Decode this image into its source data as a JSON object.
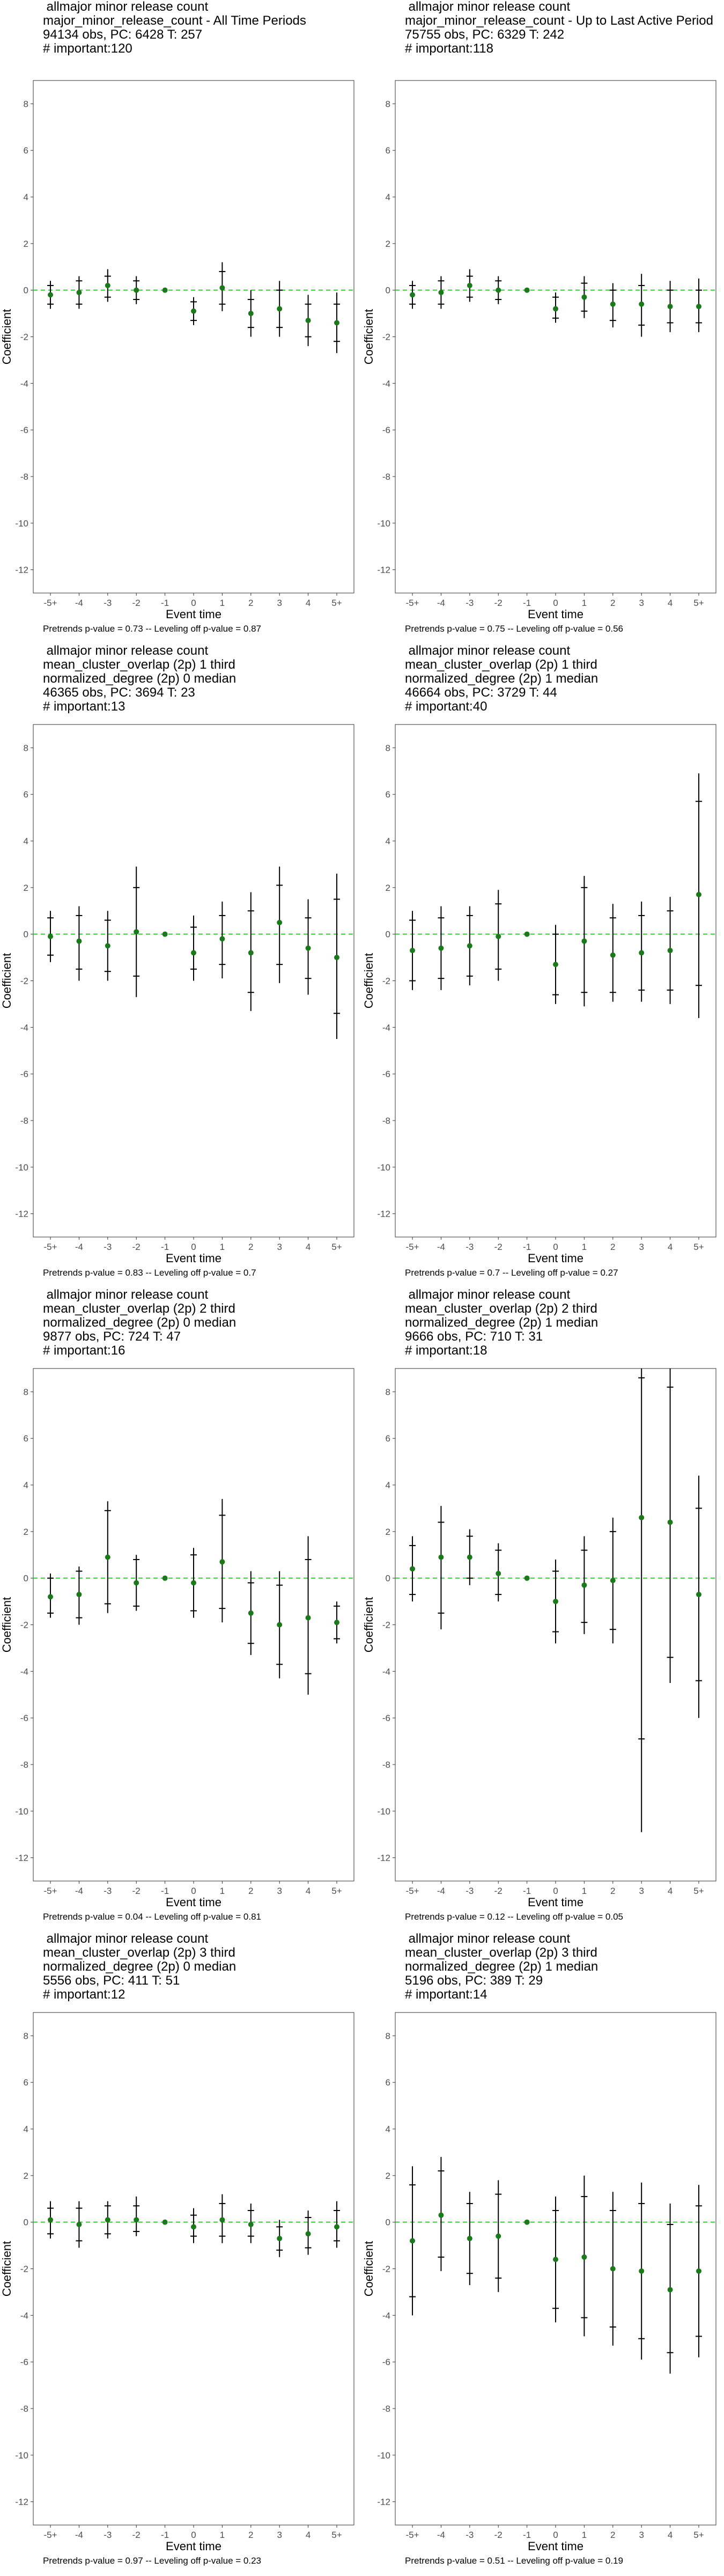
{
  "chart_data": [
    {
      "type": "scatter",
      "title_lines": [
        "allmajor minor release count",
        "major_minor_release_count - All Time Periods",
        "94134 obs, PC: 6428 T: 257",
        "# important:120"
      ],
      "xlabel": "Event time",
      "ylabel": "Coefficient",
      "categories": [
        "-5+",
        "-4",
        "-3",
        "-2",
        "-1",
        "0",
        "1",
        "2",
        "3",
        "4",
        "5+"
      ],
      "ylim": [
        -13,
        9
      ],
      "yticks": [
        8,
        6,
        4,
        2,
        0,
        -2,
        -4,
        -6,
        -8,
        -10,
        -12
      ],
      "y": [
        -0.2,
        -0.1,
        0.2,
        0.0,
        0.0,
        -0.9,
        0.1,
        -1.0,
        -0.8,
        -1.3,
        -1.4
      ],
      "ci95": [
        [
          -0.8,
          0.4
        ],
        [
          -0.8,
          0.6
        ],
        [
          -0.5,
          0.9
        ],
        [
          -0.6,
          0.6
        ],
        [
          0.0,
          0.0
        ],
        [
          -1.5,
          -0.3
        ],
        [
          -0.9,
          1.2
        ],
        [
          -2.0,
          0.0
        ],
        [
          -2.0,
          0.4
        ],
        [
          -2.4,
          -0.2
        ],
        [
          -2.7,
          -0.1
        ]
      ],
      "ci90": [
        [
          -0.6,
          0.2
        ],
        [
          -0.6,
          0.4
        ],
        [
          -0.3,
          0.6
        ],
        [
          -0.4,
          0.4
        ],
        [
          0.0,
          0.0
        ],
        [
          -1.3,
          -0.5
        ],
        [
          -0.6,
          0.8
        ],
        [
          -1.6,
          -0.4
        ],
        [
          -1.6,
          0.0
        ],
        [
          -2.0,
          -0.6
        ],
        [
          -2.2,
          -0.6
        ]
      ],
      "footnote": "Pretrends p-value = 0.73 -- Leveling off p-value = 0.87"
    },
    {
      "type": "scatter",
      "title_lines": [
        "allmajor minor release count",
        "major_minor_release_count - Up to Last Active Period",
        "75755 obs, PC: 6329 T: 242",
        "# important:118"
      ],
      "xlabel": "Event time",
      "ylabel": "Coefficient",
      "categories": [
        "-5+",
        "-4",
        "-3",
        "-2",
        "-1",
        "0",
        "1",
        "2",
        "3",
        "4",
        "5+"
      ],
      "ylim": [
        -13,
        9
      ],
      "yticks": [
        8,
        6,
        4,
        2,
        0,
        -2,
        -4,
        -6,
        -8,
        -10,
        -12
      ],
      "y": [
        -0.2,
        -0.1,
        0.2,
        0.0,
        0.0,
        -0.8,
        -0.3,
        -0.6,
        -0.6,
        -0.7,
        -0.7
      ],
      "ci95": [
        [
          -0.8,
          0.4
        ],
        [
          -0.8,
          0.6
        ],
        [
          -0.5,
          0.9
        ],
        [
          -0.6,
          0.6
        ],
        [
          0.0,
          0.0
        ],
        [
          -1.4,
          -0.1
        ],
        [
          -1.2,
          0.6
        ],
        [
          -1.6,
          0.3
        ],
        [
          -2.0,
          0.7
        ],
        [
          -1.8,
          0.4
        ],
        [
          -1.8,
          0.5
        ]
      ],
      "ci90": [
        [
          -0.6,
          0.2
        ],
        [
          -0.6,
          0.4
        ],
        [
          -0.3,
          0.6
        ],
        [
          -0.4,
          0.4
        ],
        [
          0.0,
          0.0
        ],
        [
          -1.2,
          -0.3
        ],
        [
          -0.9,
          0.3
        ],
        [
          -1.3,
          0.0
        ],
        [
          -1.5,
          0.2
        ],
        [
          -1.4,
          0.0
        ],
        [
          -1.4,
          0.0
        ]
      ],
      "footnote": "Pretrends p-value = 0.75 -- Leveling off p-value = 0.56"
    },
    {
      "type": "scatter",
      "title_lines": [
        "allmajor minor release count",
        "mean_cluster_overlap (2p) 1 third",
        "normalized_degree (2p) 0 median",
        "46365 obs, PC: 3694 T: 23",
        "# important:13"
      ],
      "xlabel": "Event time",
      "ylabel": "Coefficient",
      "categories": [
        "-5+",
        "-4",
        "-3",
        "-2",
        "-1",
        "0",
        "1",
        "2",
        "3",
        "4",
        "5+"
      ],
      "ylim": [
        -13,
        9
      ],
      "yticks": [
        8,
        6,
        4,
        2,
        0,
        -2,
        -4,
        -6,
        -8,
        -10,
        -12
      ],
      "y": [
        -0.1,
        -0.3,
        -0.5,
        0.1,
        0.0,
        -0.8,
        -0.2,
        -0.8,
        0.5,
        -0.6,
        -1.0
      ],
      "ci95": [
        [
          -1.2,
          1.0
        ],
        [
          -2.0,
          1.2
        ],
        [
          -2.0,
          1.0
        ],
        [
          -2.7,
          2.9
        ],
        [
          0.0,
          0.0
        ],
        [
          -2.0,
          0.8
        ],
        [
          -1.9,
          1.4
        ],
        [
          -3.3,
          1.8
        ],
        [
          -2.1,
          2.9
        ],
        [
          -2.6,
          1.5
        ],
        [
          -4.5,
          2.6
        ]
      ],
      "ci90": [
        [
          -0.9,
          0.7
        ],
        [
          -1.5,
          0.8
        ],
        [
          -1.6,
          0.6
        ],
        [
          -1.8,
          2.0
        ],
        [
          0.0,
          0.0
        ],
        [
          -1.5,
          0.3
        ],
        [
          -1.3,
          0.8
        ],
        [
          -2.5,
          1.0
        ],
        [
          -1.3,
          2.1
        ],
        [
          -1.9,
          0.7
        ],
        [
          -3.4,
          1.5
        ]
      ],
      "footnote": "Pretrends p-value = 0.83 -- Leveling off p-value = 0.7"
    },
    {
      "type": "scatter",
      "title_lines": [
        "allmajor minor release count",
        "mean_cluster_overlap (2p) 1 third",
        "normalized_degree (2p) 1 median",
        "46664 obs, PC: 3729 T: 44",
        "# important:40"
      ],
      "xlabel": "Event time",
      "ylabel": "Coefficient",
      "categories": [
        "-5+",
        "-4",
        "-3",
        "-2",
        "-1",
        "0",
        "1",
        "2",
        "3",
        "4",
        "5+"
      ],
      "ylim": [
        -13,
        9
      ],
      "yticks": [
        8,
        6,
        4,
        2,
        0,
        -2,
        -4,
        -6,
        -8,
        -10,
        -12
      ],
      "y": [
        -0.7,
        -0.6,
        -0.5,
        -0.1,
        0.0,
        -1.3,
        -0.3,
        -0.9,
        -0.8,
        -0.7,
        1.7
      ],
      "ci95": [
        [
          -2.4,
          1.0
        ],
        [
          -2.4,
          1.2
        ],
        [
          -2.2,
          1.2
        ],
        [
          -2.0,
          1.9
        ],
        [
          0.0,
          0.0
        ],
        [
          -3.0,
          0.4
        ],
        [
          -3.1,
          2.5
        ],
        [
          -2.9,
          1.3
        ],
        [
          -2.9,
          1.4
        ],
        [
          -3.0,
          1.6
        ],
        [
          -3.6,
          6.9
        ]
      ],
      "ci90": [
        [
          -2.0,
          0.6
        ],
        [
          -1.9,
          0.7
        ],
        [
          -1.8,
          0.8
        ],
        [
          -1.5,
          1.3
        ],
        [
          0.0,
          0.0
        ],
        [
          -2.6,
          0.0
        ],
        [
          -2.5,
          2.0
        ],
        [
          -2.5,
          0.7
        ],
        [
          -2.4,
          0.8
        ],
        [
          -2.4,
          1.0
        ],
        [
          -2.2,
          5.7
        ]
      ],
      "footnote": "Pretrends p-value = 0.7 -- Leveling off p-value = 0.27"
    },
    {
      "type": "scatter",
      "title_lines": [
        "allmajor minor release count",
        "mean_cluster_overlap (2p) 2 third",
        "normalized_degree (2p) 0 median",
        "9877 obs, PC: 724 T: 47",
        "# important:16"
      ],
      "xlabel": "Event time",
      "ylabel": "Coefficient",
      "categories": [
        "-5+",
        "-4",
        "-3",
        "-2",
        "-1",
        "0",
        "1",
        "2",
        "3",
        "4",
        "5+"
      ],
      "ylim": [
        -13,
        9
      ],
      "yticks": [
        8,
        6,
        4,
        2,
        0,
        -2,
        -4,
        -6,
        -8,
        -10,
        -12
      ],
      "y": [
        -0.8,
        -0.7,
        0.9,
        -0.2,
        0.0,
        -0.2,
        0.7,
        -1.5,
        -2.0,
        -1.7,
        -1.9
      ],
      "ci95": [
        [
          -1.7,
          0.2
        ],
        [
          -2.0,
          0.5
        ],
        [
          -1.5,
          3.3
        ],
        [
          -1.4,
          1.0
        ],
        [
          0.0,
          0.0
        ],
        [
          -1.7,
          1.3
        ],
        [
          -1.9,
          3.4
        ],
        [
          -3.3,
          0.3
        ],
        [
          -4.3,
          0.3
        ],
        [
          -5.0,
          1.8
        ],
        [
          -2.8,
          -1.0
        ]
      ],
      "ci90": [
        [
          -1.5,
          0.0
        ],
        [
          -1.7,
          0.3
        ],
        [
          -1.1,
          2.9
        ],
        [
          -1.2,
          0.8
        ],
        [
          0.0,
          0.0
        ],
        [
          -1.4,
          1.0
        ],
        [
          -1.3,
          2.7
        ],
        [
          -2.8,
          -0.2
        ],
        [
          -3.7,
          -0.3
        ],
        [
          -4.1,
          0.8
        ],
        [
          -2.6,
          -1.2
        ]
      ],
      "footnote": "Pretrends p-value = 0.04 -- Leveling off p-value = 0.81"
    },
    {
      "type": "scatter",
      "title_lines": [
        "allmajor minor release count",
        "mean_cluster_overlap (2p) 2 third",
        "normalized_degree (2p) 1 median",
        "9666 obs, PC: 710 T: 31",
        "# important:18"
      ],
      "xlabel": "Event time",
      "ylabel": "Coefficient",
      "categories": [
        "-5+",
        "-4",
        "-3",
        "-2",
        "-1",
        "0",
        "1",
        "2",
        "3",
        "4",
        "5+"
      ],
      "ylim": [
        -13,
        9
      ],
      "yticks": [
        8,
        6,
        4,
        2,
        0,
        -2,
        -4,
        -6,
        -8,
        -10,
        -12
      ],
      "y": [
        0.4,
        0.9,
        0.9,
        0.2,
        0.0,
        -1.0,
        -0.3,
        -0.1,
        2.6,
        2.4,
        -0.7
      ],
      "ci95": [
        [
          -1.0,
          1.8
        ],
        [
          -2.2,
          3.1
        ],
        [
          -0.3,
          2.1
        ],
        [
          -1.0,
          1.5
        ],
        [
          0.0,
          0.0
        ],
        [
          -2.8,
          0.8
        ],
        [
          -2.4,
          1.8
        ],
        [
          -2.8,
          2.6
        ],
        [
          -10.9,
          9.0
        ],
        [
          -4.5,
          9.0
        ],
        [
          -6.0,
          4.4
        ]
      ],
      "ci90": [
        [
          -0.7,
          1.4
        ],
        [
          -1.5,
          2.4
        ],
        [
          0.0,
          1.8
        ],
        [
          -0.7,
          1.2
        ],
        [
          0.0,
          0.0
        ],
        [
          -2.3,
          0.3
        ],
        [
          -1.9,
          1.2
        ],
        [
          -2.2,
          2.0
        ],
        [
          -6.9,
          8.6
        ],
        [
          -3.4,
          8.2
        ],
        [
          -4.4,
          3.0
        ]
      ],
      "footnote": "Pretrends p-value = 0.12 -- Leveling off p-value = 0.05"
    },
    {
      "type": "scatter",
      "title_lines": [
        "allmajor minor release count",
        "mean_cluster_overlap (2p) 3 third",
        "normalized_degree (2p) 0 median",
        "5556 obs, PC: 411 T: 51",
        "# important:12"
      ],
      "xlabel": "Event time",
      "ylabel": "Coefficient",
      "categories": [
        "-5+",
        "-4",
        "-3",
        "-2",
        "-1",
        "0",
        "1",
        "2",
        "3",
        "4",
        "5+"
      ],
      "ylim": [
        -13,
        9
      ],
      "yticks": [
        8,
        6,
        4,
        2,
        0,
        -2,
        -4,
        -6,
        -8,
        -10,
        -12
      ],
      "y": [
        0.1,
        -0.1,
        0.1,
        0.1,
        0.0,
        -0.2,
        0.1,
        -0.1,
        -0.7,
        -0.5,
        -0.2
      ],
      "ci95": [
        [
          -0.7,
          0.9
        ],
        [
          -1.1,
          0.9
        ],
        [
          -0.7,
          0.9
        ],
        [
          -0.6,
          1.1
        ],
        [
          0.0,
          0.0
        ],
        [
          -0.9,
          0.6
        ],
        [
          -0.9,
          1.2
        ],
        [
          -0.9,
          0.8
        ],
        [
          -1.5,
          0.1
        ],
        [
          -1.4,
          0.5
        ],
        [
          -1.1,
          0.9
        ]
      ],
      "ci90": [
        [
          -0.5,
          0.6
        ],
        [
          -0.8,
          0.6
        ],
        [
          -0.5,
          0.7
        ],
        [
          -0.4,
          0.7
        ],
        [
          0.0,
          0.0
        ],
        [
          -0.6,
          0.3
        ],
        [
          -0.6,
          0.8
        ],
        [
          -0.6,
          0.5
        ],
        [
          -1.2,
          -0.2
        ],
        [
          -1.1,
          0.2
        ],
        [
          -0.8,
          0.5
        ]
      ],
      "footnote": "Pretrends p-value = 0.97 -- Leveling off p-value = 0.23"
    },
    {
      "type": "scatter",
      "title_lines": [
        "allmajor minor release count",
        "mean_cluster_overlap (2p) 3 third",
        "normalized_degree (2p) 1 median",
        "5196 obs, PC: 389 T: 29",
        "# important:14"
      ],
      "xlabel": "Event time",
      "ylabel": "Coefficient",
      "categories": [
        "-5+",
        "-4",
        "-3",
        "-2",
        "-1",
        "0",
        "1",
        "2",
        "3",
        "4",
        "5+"
      ],
      "ylim": [
        -13,
        9
      ],
      "yticks": [
        8,
        6,
        4,
        2,
        0,
        -2,
        -4,
        -6,
        -8,
        -10,
        -12
      ],
      "y": [
        -0.8,
        0.3,
        -0.7,
        -0.6,
        0.0,
        -1.6,
        -1.5,
        -2.0,
        -2.1,
        -2.9,
        -2.1
      ],
      "ci95": [
        [
          -4.0,
          2.4
        ],
        [
          -2.1,
          2.8
        ],
        [
          -2.7,
          1.3
        ],
        [
          -3.0,
          1.8
        ],
        [
          0.0,
          0.0
        ],
        [
          -4.3,
          1.1
        ],
        [
          -4.9,
          2.0
        ],
        [
          -5.3,
          1.3
        ],
        [
          -5.9,
          1.7
        ],
        [
          -6.5,
          0.8
        ],
        [
          -5.8,
          1.6
        ]
      ],
      "ci90": [
        [
          -3.2,
          1.6
        ],
        [
          -1.5,
          2.2
        ],
        [
          -2.2,
          0.8
        ],
        [
          -2.4,
          1.2
        ],
        [
          0.0,
          0.0
        ],
        [
          -3.7,
          0.5
        ],
        [
          -4.1,
          1.1
        ],
        [
          -4.5,
          0.5
        ],
        [
          -5.0,
          0.8
        ],
        [
          -5.6,
          -0.1
        ],
        [
          -4.9,
          0.7
        ]
      ],
      "footnote": "Pretrends p-value = 0.51 -- Leveling off p-value = 0.19"
    }
  ]
}
